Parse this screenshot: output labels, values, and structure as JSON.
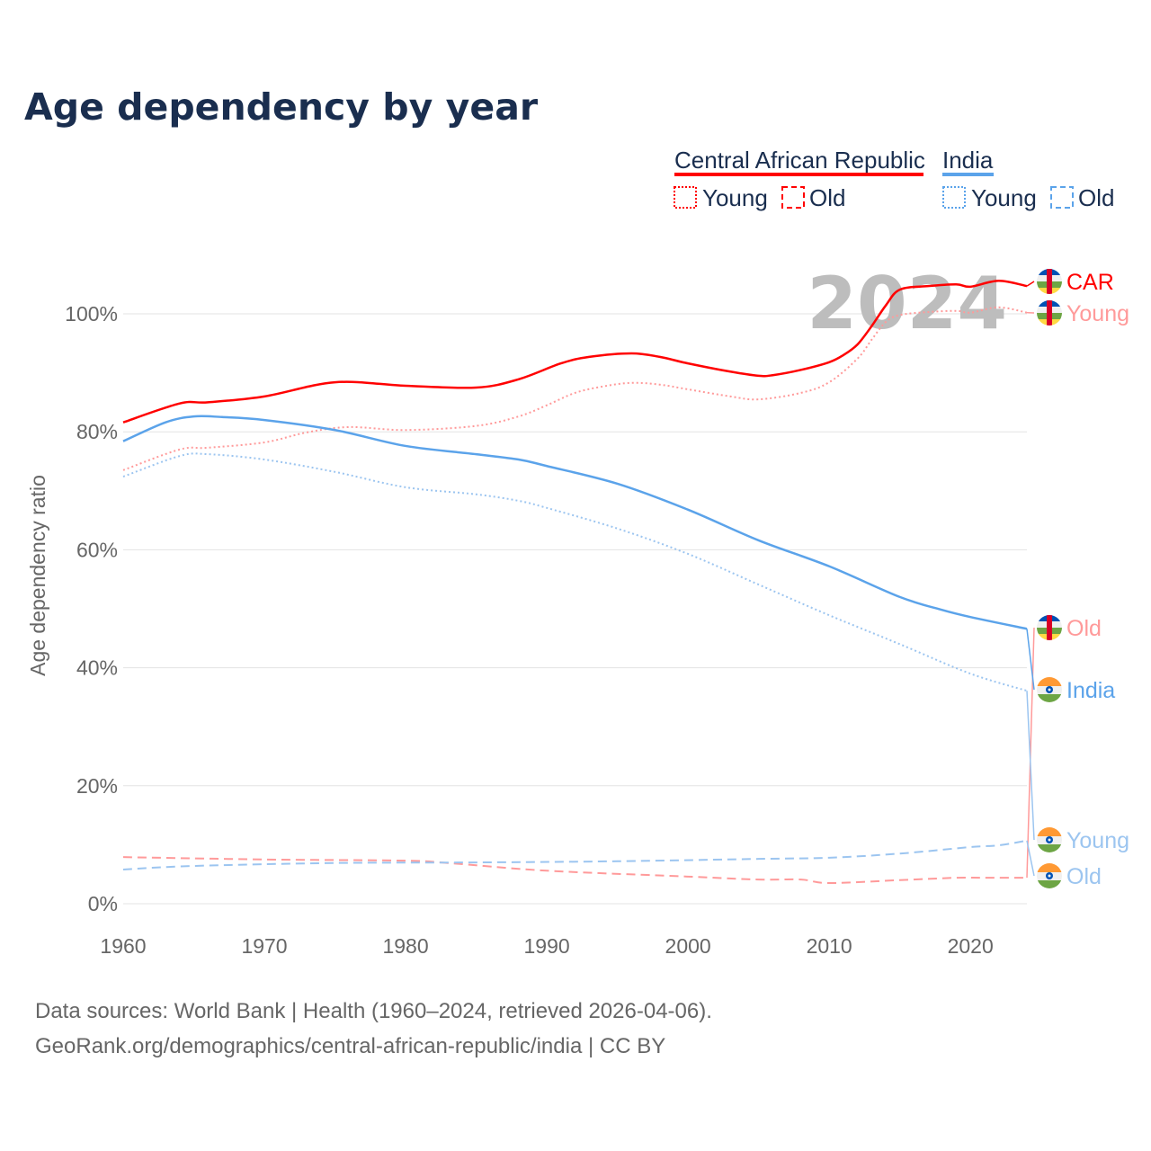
{
  "title": "Age dependency by year",
  "legend": {
    "groups": [
      {
        "country": "Central African Republic",
        "color": "#ff0000",
        "young": "Young",
        "old": "Old"
      },
      {
        "country": "India",
        "color": "#5ba3ea",
        "young": "Young",
        "old": "Old"
      }
    ]
  },
  "watermark_year": "2024",
  "footer": {
    "line1": "Data sources: World Bank | Health (1960–2024, retrieved 2026-04-06).",
    "line2": "GeoRank.org/demographics/central-african-republic/india | CC BY"
  },
  "chart_data": {
    "type": "line",
    "title": "Age dependency by year",
    "xlabel": "",
    "ylabel": "Age dependency ratio",
    "xlim": [
      1960,
      2024
    ],
    "ylim": [
      0,
      110
    ],
    "x_ticks": [
      "1960",
      "1970",
      "1980",
      "1990",
      "2000",
      "2010",
      "2020"
    ],
    "y_ticks": [
      "0%",
      "20%",
      "40%",
      "60%",
      "80%",
      "100%"
    ],
    "grid": true,
    "series": [
      {
        "name": "Central African Republic",
        "end_label": "CAR",
        "flag": "car",
        "color": "#ff0000",
        "style": "solid",
        "points": [
          [
            1960,
            81.6
          ],
          [
            1964,
            84.8
          ],
          [
            1966,
            85
          ],
          [
            1970,
            86
          ],
          [
            1975,
            88.4
          ],
          [
            1980,
            87.8
          ],
          [
            1985,
            87.5
          ],
          [
            1988,
            88.9
          ],
          [
            1991,
            91.6
          ],
          [
            1993,
            92.7
          ],
          [
            1996,
            93.3
          ],
          [
            1998,
            92.7
          ],
          [
            2000,
            91.6
          ],
          [
            2003,
            90.2
          ],
          [
            2005,
            89.5
          ],
          [
            2006,
            89.6
          ],
          [
            2008,
            90.5
          ],
          [
            2010,
            91.8
          ],
          [
            2011,
            93
          ],
          [
            2012,
            94.8
          ],
          [
            2013,
            97.9
          ],
          [
            2014,
            101.4
          ],
          [
            2015,
            104.1
          ],
          [
            2017,
            104.7
          ],
          [
            2019,
            105
          ],
          [
            2020,
            104.6
          ],
          [
            2022,
            105.6
          ],
          [
            2024,
            104.7
          ]
        ]
      },
      {
        "name": "Central African Republic Young",
        "end_label": "Young",
        "flag": "car",
        "color": "#ff9a9a",
        "style": "dotted",
        "points": [
          [
            1960,
            73.5
          ],
          [
            1964,
            77
          ],
          [
            1966,
            77.3
          ],
          [
            1970,
            78.2
          ],
          [
            1973,
            79.9
          ],
          [
            1976,
            80.8
          ],
          [
            1980,
            80.3
          ],
          [
            1985,
            81
          ],
          [
            1988,
            82.6
          ],
          [
            1990,
            84.5
          ],
          [
            1992,
            86.6
          ],
          [
            1994,
            87.7
          ],
          [
            1996,
            88.3
          ],
          [
            1998,
            88
          ],
          [
            2000,
            87.2
          ],
          [
            2003,
            86
          ],
          [
            2005,
            85.5
          ],
          [
            2008,
            86.6
          ],
          [
            2010,
            88.4
          ],
          [
            2012,
            92.4
          ],
          [
            2013,
            95.6
          ],
          [
            2014,
            98.6
          ],
          [
            2015,
            99.8
          ],
          [
            2017,
            100.3
          ],
          [
            2019,
            100.5
          ],
          [
            2020,
            100.2
          ],
          [
            2022,
            101.1
          ],
          [
            2024,
            100.2
          ]
        ]
      },
      {
        "name": "Central African Republic Old",
        "end_label": "Old",
        "flag": "car",
        "color": "#ff9a9a",
        "style": "dashed",
        "points": [
          [
            1960,
            7.9
          ],
          [
            1970,
            7.5
          ],
          [
            1980,
            7.3
          ],
          [
            1983,
            6.9
          ],
          [
            1990,
            5.6
          ],
          [
            2000,
            4.6
          ],
          [
            2005,
            4.1
          ],
          [
            2008,
            4.1
          ],
          [
            2010,
            3.5
          ],
          [
            2015,
            4
          ],
          [
            2019,
            4.4
          ],
          [
            2021,
            4.4
          ],
          [
            2024,
            4.4
          ]
        ]
      },
      {
        "name": "India",
        "end_label": "India",
        "flag": "india",
        "color": "#5ba3ea",
        "style": "solid",
        "points": [
          [
            1960,
            78.4
          ],
          [
            1963,
            81.6
          ],
          [
            1965,
            82.6
          ],
          [
            1967,
            82.5
          ],
          [
            1970,
            82
          ],
          [
            1975,
            80.3
          ],
          [
            1980,
            77.6
          ],
          [
            1985,
            76.2
          ],
          [
            1988,
            75.3
          ],
          [
            1990,
            74.2
          ],
          [
            1995,
            71.2
          ],
          [
            2000,
            66.8
          ],
          [
            2005,
            61.6
          ],
          [
            2010,
            57.2
          ],
          [
            2015,
            52
          ],
          [
            2018,
            49.8
          ],
          [
            2020,
            48.6
          ],
          [
            2024,
            46.6
          ]
        ]
      },
      {
        "name": "India Young",
        "end_label": "Young",
        "flag": "india",
        "color": "#9cc5f0",
        "style": "dotted",
        "points": [
          [
            1960,
            72.4
          ],
          [
            1964,
            75.9
          ],
          [
            1966,
            76.2
          ],
          [
            1970,
            75.3
          ],
          [
            1975,
            73.2
          ],
          [
            1980,
            70.6
          ],
          [
            1985,
            69.4
          ],
          [
            1988,
            68.3
          ],
          [
            1990,
            67.1
          ],
          [
            1995,
            63.6
          ],
          [
            2000,
            59.3
          ],
          [
            2005,
            54.1
          ],
          [
            2010,
            48.9
          ],
          [
            2015,
            44
          ],
          [
            2020,
            39
          ],
          [
            2024,
            36.1
          ]
        ]
      },
      {
        "name": "India Old",
        "end_label": "Old",
        "flag": "india",
        "color": "#9cc5f0",
        "style": "dashed",
        "points": [
          [
            1960,
            5.8
          ],
          [
            1965,
            6.4
          ],
          [
            1975,
            6.9
          ],
          [
            1985,
            7
          ],
          [
            1995,
            7.2
          ],
          [
            2005,
            7.6
          ],
          [
            2010,
            7.8
          ],
          [
            2015,
            8.5
          ],
          [
            2020,
            9.6
          ],
          [
            2022,
            9.9
          ],
          [
            2024,
            10.7
          ]
        ]
      }
    ]
  }
}
